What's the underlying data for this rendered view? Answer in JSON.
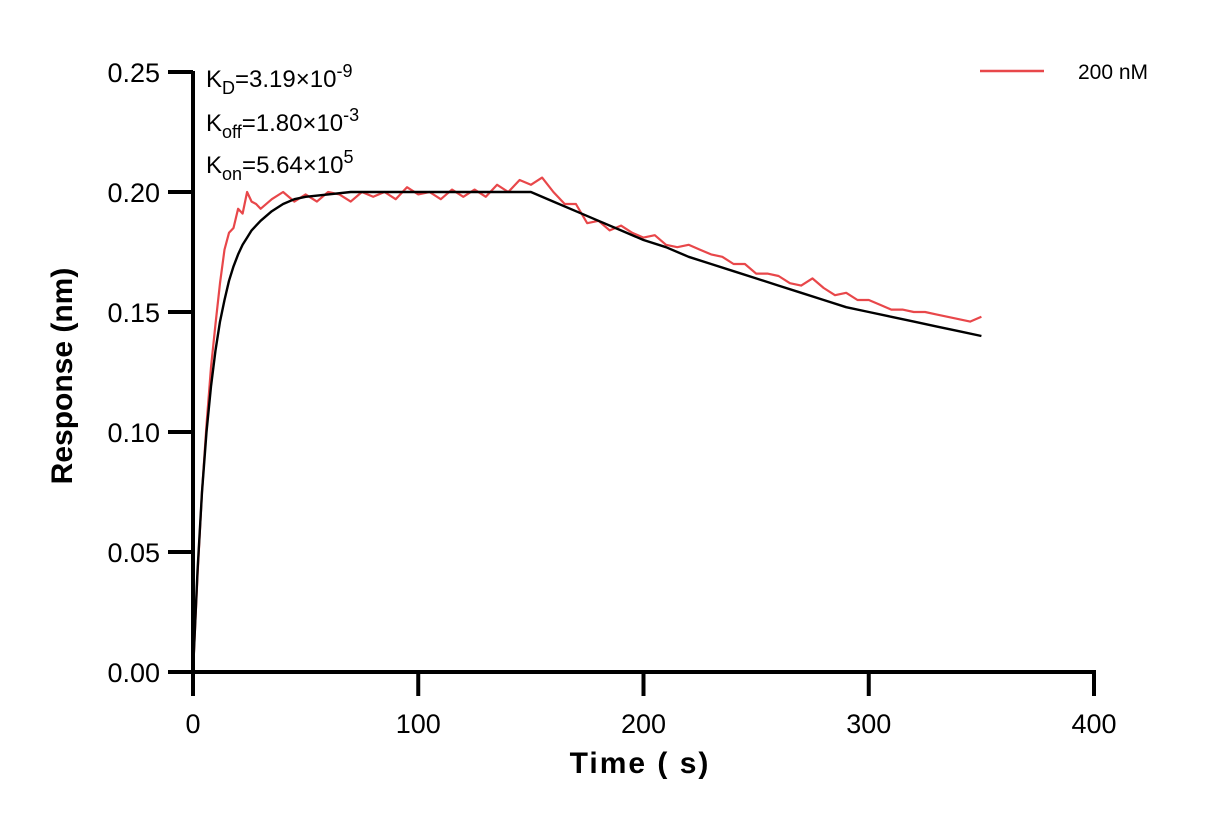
{
  "chart_data": {
    "type": "line",
    "title": "",
    "xlabel": "Time ( s)",
    "ylabel": "Response (nm)",
    "xlim": [
      0,
      400
    ],
    "ylim": [
      0,
      0.25
    ],
    "x_ticks": [
      "0",
      "100",
      "200",
      "300",
      "400"
    ],
    "y_ticks": [
      "0.00",
      "0.05",
      "0.10",
      "0.15",
      "0.20",
      "0.25"
    ],
    "x_tick_values": [
      0,
      100,
      200,
      300,
      400
    ],
    "y_tick_values": [
      0,
      0.05,
      0.1,
      0.15,
      0.2,
      0.25
    ],
    "grid": false,
    "legend_position": "top-right",
    "annotations": [
      {
        "base": "K",
        "sub": "D",
        "body": "=3.19×10",
        "sup": "-9"
      },
      {
        "base": "K",
        "sub": "off",
        "body": "=1.80×10",
        "sup": "-3"
      },
      {
        "base": "K",
        "sub": "on",
        "body": "=5.64×10",
        "sup": "5"
      }
    ],
    "series": [
      {
        "name": "200 nM",
        "color": "#e8474a",
        "x": [
          0,
          2,
          4,
          6,
          8,
          10,
          12,
          14,
          16,
          18,
          20,
          22,
          24,
          26,
          28,
          30,
          35,
          40,
          45,
          50,
          55,
          60,
          65,
          70,
          75,
          80,
          85,
          90,
          95,
          100,
          105,
          110,
          115,
          120,
          125,
          130,
          135,
          140,
          145,
          150,
          155,
          160,
          165,
          170,
          175,
          180,
          185,
          190,
          195,
          200,
          205,
          210,
          215,
          220,
          225,
          230,
          235,
          240,
          245,
          250,
          255,
          260,
          265,
          270,
          275,
          280,
          285,
          290,
          295,
          300,
          305,
          310,
          315,
          320,
          325,
          330,
          335,
          340,
          345,
          350
        ],
        "y": [
          0.0,
          0.04,
          0.075,
          0.103,
          0.127,
          0.145,
          0.162,
          0.176,
          0.183,
          0.185,
          0.193,
          0.191,
          0.2,
          0.196,
          0.195,
          0.193,
          0.197,
          0.2,
          0.196,
          0.199,
          0.196,
          0.2,
          0.199,
          0.196,
          0.2,
          0.198,
          0.2,
          0.197,
          0.202,
          0.199,
          0.2,
          0.197,
          0.201,
          0.198,
          0.201,
          0.198,
          0.203,
          0.2,
          0.205,
          0.203,
          0.206,
          0.2,
          0.195,
          0.195,
          0.187,
          0.188,
          0.184,
          0.186,
          0.183,
          0.181,
          0.182,
          0.178,
          0.177,
          0.178,
          0.176,
          0.174,
          0.173,
          0.17,
          0.17,
          0.166,
          0.166,
          0.165,
          0.162,
          0.161,
          0.164,
          0.16,
          0.157,
          0.158,
          0.155,
          0.155,
          0.153,
          0.151,
          0.151,
          0.15,
          0.15,
          0.149,
          0.148,
          0.147,
          0.146,
          0.148
        ]
      },
      {
        "color": "#000000",
        "x": [
          0,
          2,
          4,
          6,
          8,
          10,
          12,
          14,
          16,
          18,
          20,
          22,
          24,
          26,
          28,
          30,
          35,
          40,
          45,
          50,
          60,
          70,
          80,
          90,
          100,
          110,
          120,
          130,
          140,
          150,
          160,
          170,
          180,
          190,
          200,
          210,
          220,
          230,
          240,
          250,
          260,
          270,
          280,
          290,
          300,
          310,
          320,
          330,
          340,
          350
        ],
        "y": [
          0.0,
          0.042,
          0.075,
          0.1,
          0.119,
          0.134,
          0.146,
          0.155,
          0.163,
          0.169,
          0.174,
          0.178,
          0.181,
          0.184,
          0.186,
          0.188,
          0.192,
          0.195,
          0.197,
          0.198,
          0.199,
          0.2,
          0.2,
          0.2,
          0.2,
          0.2,
          0.2,
          0.2,
          0.2,
          0.2,
          0.196,
          0.192,
          0.188,
          0.184,
          0.18,
          0.177,
          0.173,
          0.17,
          0.167,
          0.164,
          0.161,
          0.158,
          0.155,
          0.152,
          0.15,
          0.148,
          0.146,
          0.144,
          0.142,
          0.14
        ]
      }
    ]
  }
}
